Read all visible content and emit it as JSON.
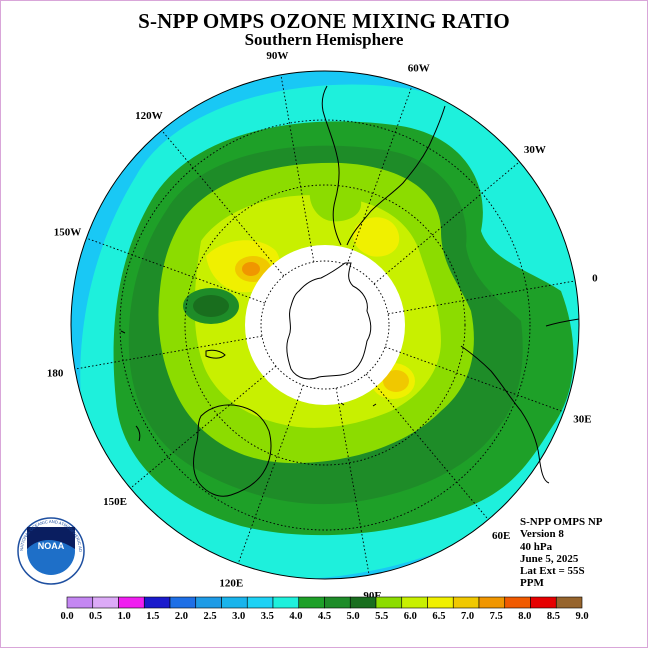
{
  "title": "S-NPP OMPS OZONE MIXING RATIO",
  "subtitle": "Southern Hemisphere",
  "info": {
    "line1": "S-NPP OMPS NP",
    "line2": "Version 8",
    "line3": "40 hPa",
    "line4": "June 5, 2025",
    "line5": "Lat Ext = 55S",
    "line6": "PPM"
  },
  "longitude_labels": {
    "lon_90w": "90W",
    "lon_60w": "60W",
    "lon_30w": "30W",
    "lon_0": "0",
    "lon_30e": "30E",
    "lon_60e": "60E",
    "lon_90e": "90E",
    "lon_120e": "120E",
    "lon_150e": "150E",
    "lon_180": "180",
    "lon_150w": "150W",
    "lon_120w": "120W"
  },
  "logo": {
    "text": "NOAA",
    "ring_text": "NATIONAL OCEANIC AND ATMOSPHERIC ADMINISTRATION • U.S. DEPARTMENT OF COMMERCE"
  },
  "colorbar": {
    "ticks": [
      "0.0",
      "0.5",
      "1.0",
      "1.5",
      "2.0",
      "2.5",
      "3.0",
      "3.5",
      "4.0",
      "4.5",
      "5.0",
      "5.5",
      "6.0",
      "6.5",
      "7.0",
      "7.5",
      "8.0",
      "8.5",
      "9.0"
    ],
    "colors": [
      "#c487f2",
      "#dcaaf7",
      "#f01ef0",
      "#1a1acc",
      "#1e6fe6",
      "#1e9be6",
      "#19b4ec",
      "#1ed2f5",
      "#1ef0dc",
      "#1ea028",
      "#1e8c28",
      "#196e1e",
      "#8cdc00",
      "#c8f000",
      "#f0f000",
      "#f0c800",
      "#f09600",
      "#f05a00",
      "#e60000",
      "#96642d"
    ],
    "min": 0.0,
    "max": 9.0,
    "units": "PPM"
  },
  "colors": {
    "ocean_outer": "#19c8f5",
    "teal": "#1ef0dc",
    "dark_green": "#1e8c28",
    "mid_green": "#1ea028",
    "light_green": "#8cdc00",
    "yellow_green": "#c8f000",
    "yellow": "#f0f000",
    "orange": "#f0c800",
    "deep_orange": "#f09600",
    "polar_cap": "#ffffff"
  }
}
